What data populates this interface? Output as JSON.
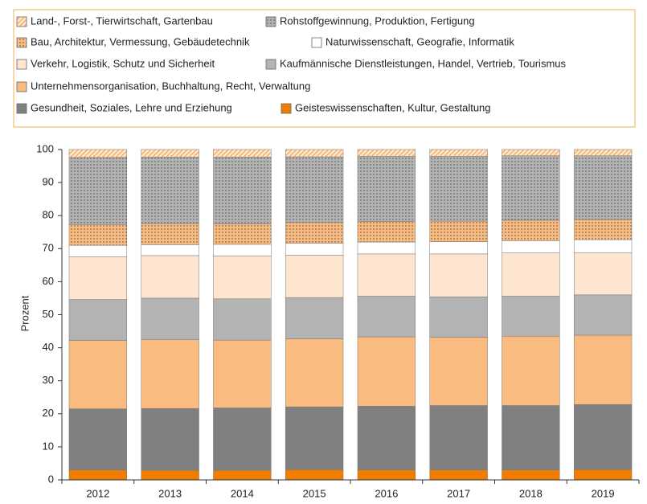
{
  "chart_data": {
    "type": "stacked_bar",
    "y_label": "Prozent",
    "categories": [
      "2012",
      "2013",
      "2014",
      "2015",
      "2016",
      "2017",
      "2018",
      "2019"
    ],
    "ylim": [
      0,
      100
    ],
    "yticks": [
      0,
      10,
      20,
      30,
      40,
      50,
      60,
      70,
      80,
      90,
      100
    ],
    "series": [
      {
        "name": "Geisteswissenschaften, Kultur, Gestaltung",
        "color": "#f07d00",
        "values": [
          3.0,
          2.9,
          2.9,
          3.1,
          3.0,
          3.0,
          3.0,
          3.1
        ]
      },
      {
        "name": "Gesundheit, Soziales, Lehre und Erziehung",
        "color": "#808080",
        "values": [
          18.5,
          18.7,
          18.9,
          19.0,
          19.3,
          19.5,
          19.5,
          19.7
        ]
      },
      {
        "name": "Unternehmensorganisation, Buchhaltung, Recht, Verwaltung",
        "color": "#f9bb7f",
        "values": [
          20.7,
          20.8,
          20.5,
          20.6,
          21.0,
          20.7,
          21.0,
          21.0
        ]
      },
      {
        "name": "Kaufmännische Dienstleistungen, Handel, Vertrieb, Tourismus",
        "color": "#b3b3b3",
        "values": [
          12.4,
          12.6,
          12.5,
          12.5,
          12.3,
          12.2,
          12.1,
          12.2
        ]
      },
      {
        "name": "Verkehr, Logistik, Schutz und Sicherheit",
        "color": "#fde5d0",
        "values": [
          12.9,
          12.9,
          13.0,
          12.8,
          12.8,
          13.0,
          13.1,
          12.8
        ]
      },
      {
        "name": "Naturwissenschaft, Geografie, Informatik",
        "color": "#ffffff",
        "values": [
          3.5,
          3.3,
          3.5,
          3.6,
          3.6,
          3.7,
          3.7,
          3.9
        ]
      },
      {
        "name": "Bau, Architektur, Vermessung, Gebäudetechnik",
        "color": "#f9bb7f",
        "pattern": "dots",
        "values": [
          6.3,
          6.4,
          6.2,
          6.3,
          6.2,
          6.2,
          6.2,
          6.1
        ]
      },
      {
        "name": "Rohstoffgewinnung, Produktion, Fertigung",
        "color": "#b3b3b3",
        "pattern": "dots",
        "values": [
          20.3,
          20.1,
          20.2,
          19.9,
          19.8,
          19.7,
          19.5,
          19.3
        ]
      },
      {
        "name": "Land-, Forst-, Tierwirtschaft, Gartenbau",
        "color": "#fde5d0",
        "pattern": "hatch",
        "values": [
          2.4,
          2.3,
          2.3,
          2.2,
          2.0,
          2.0,
          1.9,
          1.9
        ]
      }
    ]
  }
}
